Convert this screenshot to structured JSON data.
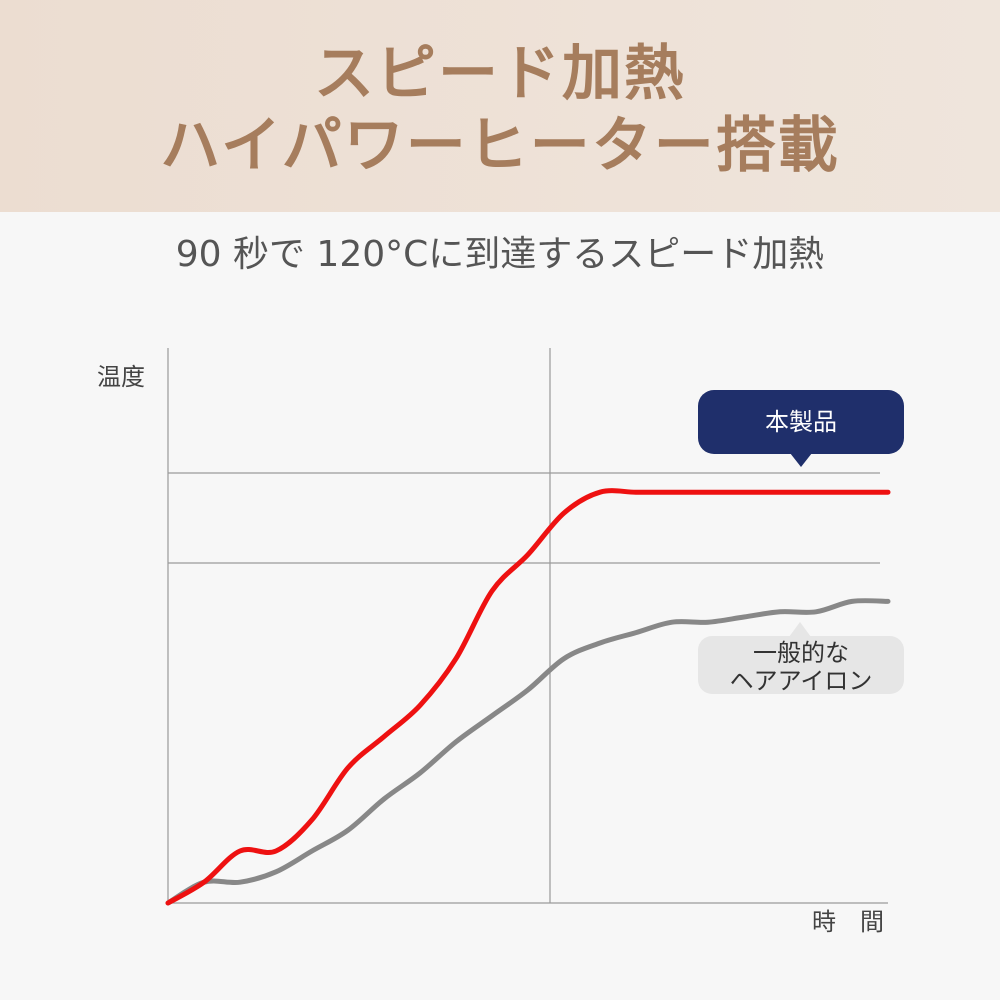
{
  "header": {
    "title_line1": "スピード加熱",
    "title_line2": "ハイパワーヒーター搭載"
  },
  "subtitle": "90 秒で 120°Cに到達するスピード加熱",
  "colors": {
    "header_bg": "#ecddd1",
    "title": "#a67d5d",
    "product_line": "#ee1111",
    "generic_line": "#888888",
    "product_bubble": "#1f2f6b",
    "generic_bubble": "#e6e6e6"
  },
  "chart_data": {
    "type": "line",
    "title": "",
    "xlabel": "時　間",
    "ylabel": "温度",
    "x": [
      0,
      0.05,
      0.1,
      0.15,
      0.2,
      0.25,
      0.3,
      0.35,
      0.4,
      0.45,
      0.5,
      0.55,
      0.6,
      0.65,
      0.7,
      0.75,
      0.8,
      0.85,
      0.9,
      0.95,
      1.0
    ],
    "xlim": [
      0,
      1
    ],
    "ylim": [
      0,
      1
    ],
    "grid": "major",
    "series": [
      {
        "name": "本製品",
        "color": "#ee1111",
        "values": [
          0.0,
          0.04,
          0.1,
          0.1,
          0.16,
          0.26,
          0.32,
          0.38,
          0.47,
          0.6,
          0.67,
          0.75,
          0.79,
          0.79,
          0.79,
          0.79,
          0.79,
          0.79,
          0.79,
          0.79,
          0.79
        ]
      },
      {
        "name": "一般的な\nヘアアイロン",
        "color": "#888888",
        "values": [
          0.0,
          0.04,
          0.04,
          0.06,
          0.1,
          0.14,
          0.2,
          0.25,
          0.31,
          0.36,
          0.41,
          0.47,
          0.5,
          0.52,
          0.54,
          0.54,
          0.55,
          0.56,
          0.56,
          0.58,
          0.58
        ]
      }
    ],
    "annotations": [
      {
        "text": "本製品",
        "series": 0
      },
      {
        "text": "一般的な\nヘアアイロン",
        "series": 1
      }
    ]
  }
}
